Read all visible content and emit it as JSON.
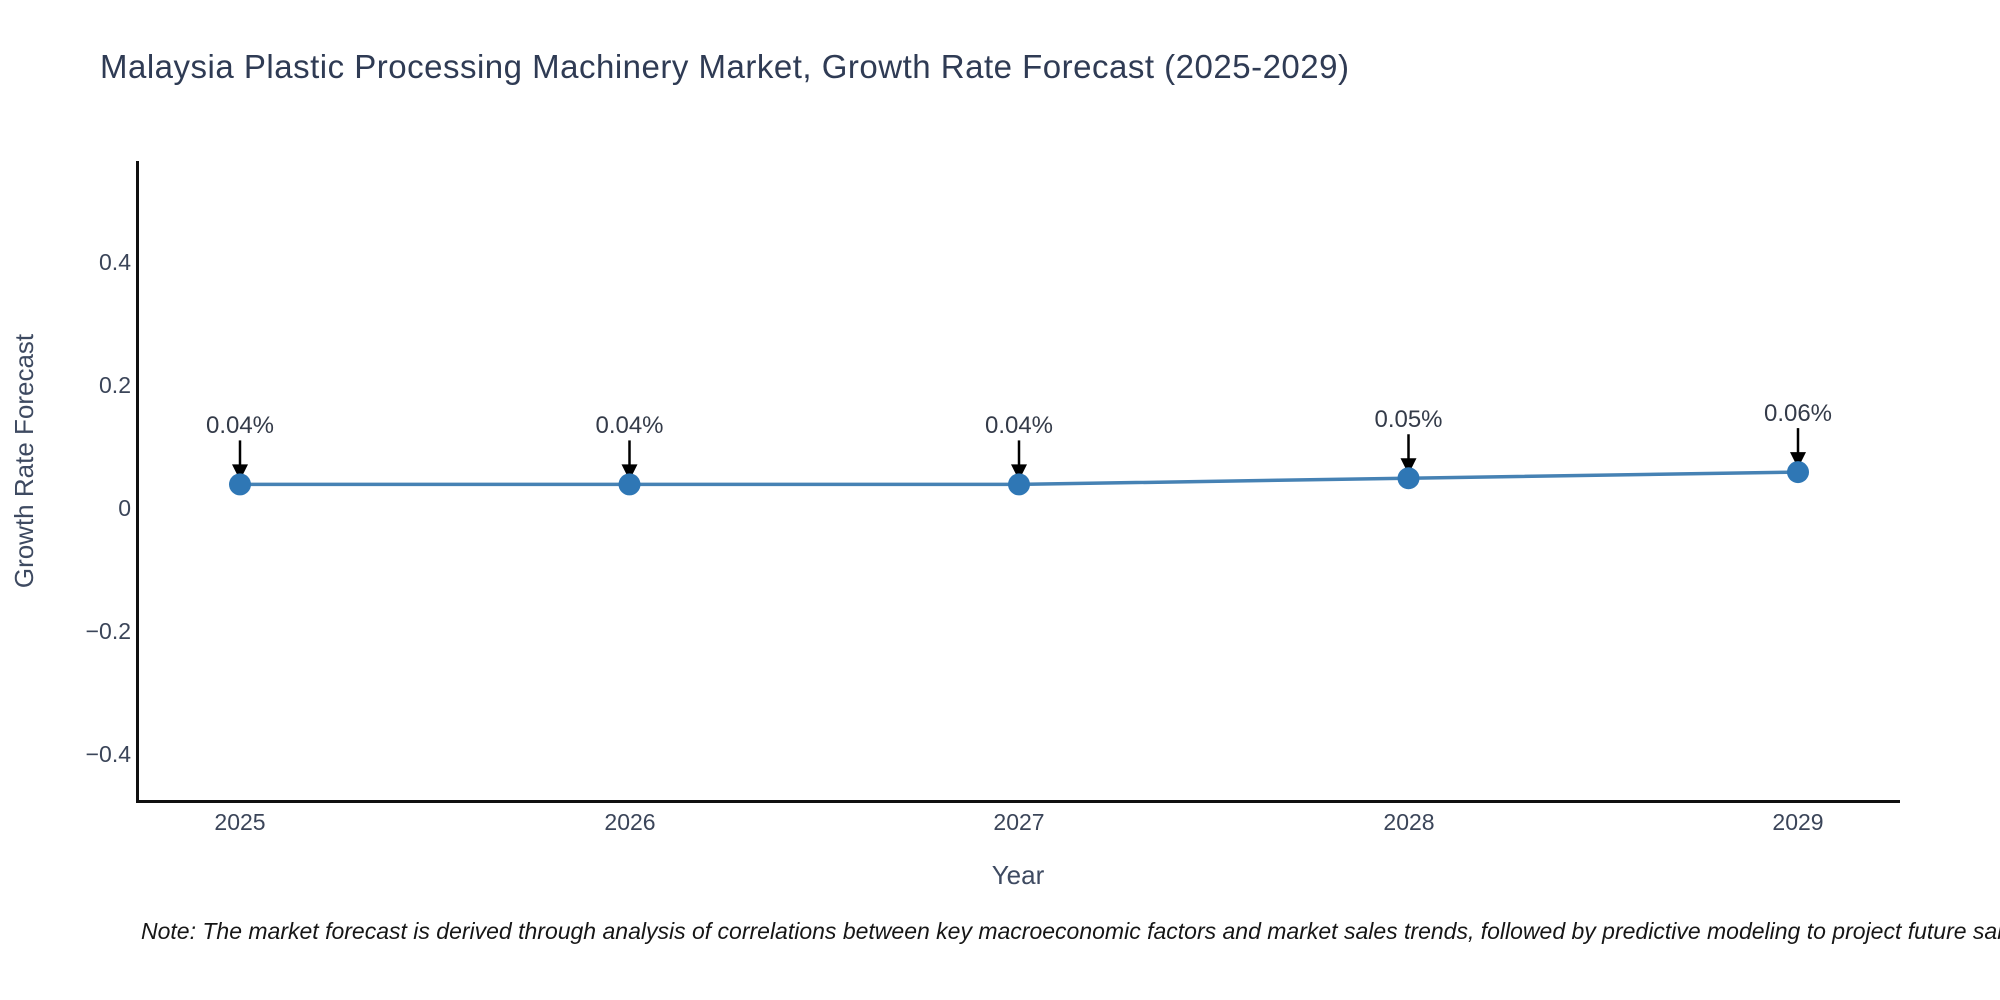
{
  "header": {
    "title": "Malaysia Plastic Processing Machinery Market, Growth Rate Forecast (2025-2029)"
  },
  "chart_data": {
    "type": "line",
    "title": "Malaysia Plastic Processing Machinery Market, Growth Rate Forecast (2025-2029)",
    "xlabel": "Year",
    "ylabel": "Growth Rate Forecast",
    "x": [
      2025,
      2026,
      2027,
      2028,
      2029
    ],
    "series": [
      {
        "name": "Growth Rate Forecast",
        "values": [
          0.04,
          0.04,
          0.04,
          0.05,
          0.06
        ]
      }
    ],
    "point_labels": [
      "0.04%",
      "0.04%",
      "0.04%",
      "0.05%",
      "0.06%"
    ],
    "x_tick_labels": [
      "2025",
      "2026",
      "2027",
      "2028",
      "2029"
    ],
    "y_tick_labels": [
      "0.4",
      "0.2",
      "0",
      "−0.2",
      "−0.4"
    ],
    "y_tick_values": [
      0.4,
      0.2,
      0,
      -0.2,
      -0.4
    ],
    "ylim": [
      -0.47,
      0.57
    ],
    "grid": false,
    "legend": "none",
    "annotations_have_arrows": true,
    "colors": {
      "line": "#4682b4",
      "marker": "#2f77b5",
      "arrow": "#000000",
      "axis": "#101010",
      "title_text": "#2f3b54",
      "tick_text": "#3b4559",
      "axis_label_text": "#3e4a61",
      "annotation_text": "#343b49",
      "note_text": "#161616",
      "background": "#ffffff"
    }
  },
  "footnote": {
    "text": "Note: The market forecast is derived through analysis of correlations between key macroeconomic factors and market sales trends, followed by predictive modeling to project future sal"
  }
}
